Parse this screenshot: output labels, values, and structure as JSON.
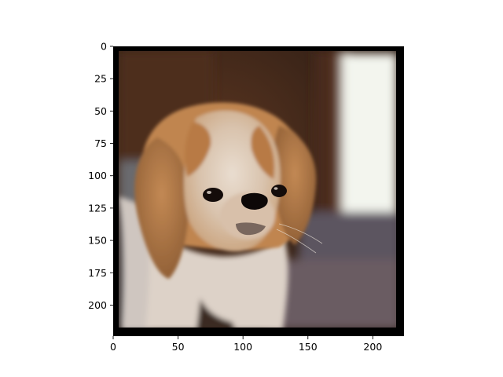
{
  "figure": {
    "image_description": "Photo of a fluffy small dog (Japanese Chin / Pekingese type) with tan and white fur, dark eyes and black nose, in front of a blurred dark brown indoor background with a bright window on the right",
    "colors": {
      "background_dark": "#3a2418",
      "fur_tan": "#b67a45",
      "fur_white": "#e8ddd2",
      "window_light": "#f4f6f0",
      "frame": "#000000"
    },
    "x_axis": {
      "range": [
        0,
        224
      ],
      "ticks": [
        0,
        50,
        100,
        150,
        200
      ],
      "tick_labels": [
        "0",
        "50",
        "100",
        "150",
        "200"
      ]
    },
    "y_axis": {
      "range": [
        0,
        224
      ],
      "inverted": true,
      "ticks": [
        0,
        25,
        50,
        75,
        100,
        125,
        150,
        175,
        200
      ],
      "tick_labels": [
        "0",
        "25",
        "50",
        "75",
        "100",
        "125",
        "150",
        "175",
        "200"
      ]
    }
  }
}
